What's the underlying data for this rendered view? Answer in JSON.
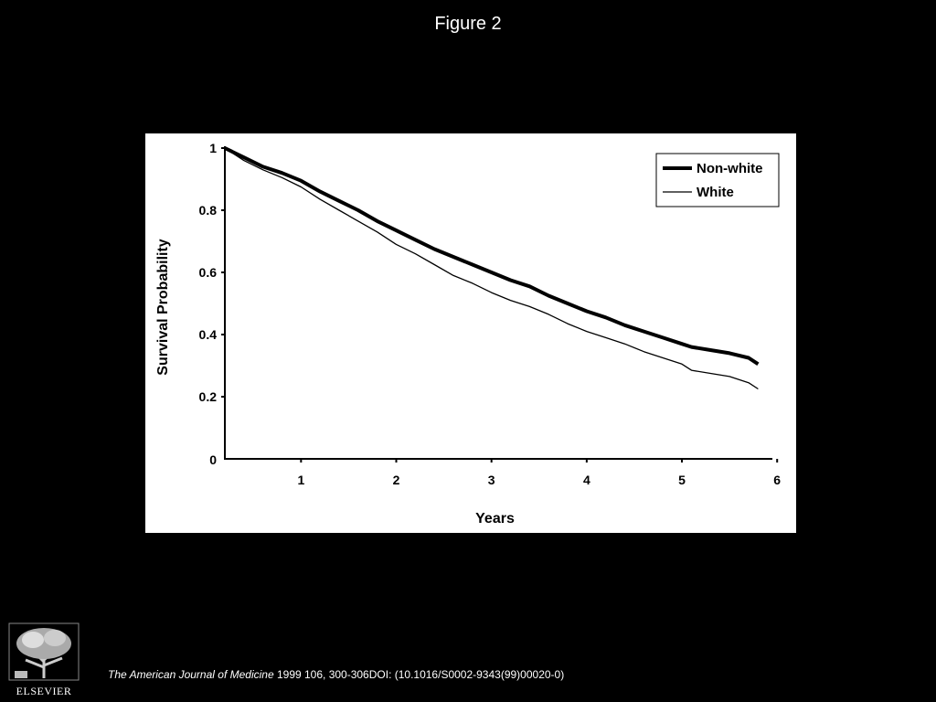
{
  "slide": {
    "title": "Figure 2"
  },
  "citation": {
    "journal": "The American Journal of Medicine",
    "details": " 1999 106, 300-306DOI: (10.1016/S0002-9343(99)00020-0)"
  },
  "publisher": {
    "name": "ELSEVIER",
    "logo_icon": "elsevier-tree-icon"
  },
  "chart_data": {
    "type": "line",
    "title": "",
    "xlabel": "Years",
    "ylabel": "Survival Probability",
    "xlim": [
      0.2,
      5.95
    ],
    "ylim": [
      0,
      1
    ],
    "x_ticks": [
      1,
      2,
      3,
      4,
      5,
      6
    ],
    "y_ticks": [
      0.2,
      0.4,
      0.6,
      0.8,
      1
    ],
    "y_tick_labels": [
      "0.2",
      "0.4",
      "0.6",
      "0.8",
      "1"
    ],
    "zero_label": "0",
    "grid": false,
    "legend_position": "top-right",
    "series": [
      {
        "name": "Non-white",
        "style": "thick",
        "x": [
          0.2,
          0.4,
          0.6,
          0.8,
          1.0,
          1.2,
          1.4,
          1.6,
          1.8,
          2.0,
          2.2,
          2.4,
          2.6,
          2.8,
          3.0,
          3.2,
          3.4,
          3.6,
          3.8,
          4.0,
          4.2,
          4.4,
          4.6,
          4.8,
          5.0,
          5.1,
          5.3,
          5.5,
          5.7,
          5.8
        ],
        "y": [
          1.0,
          0.97,
          0.94,
          0.92,
          0.895,
          0.86,
          0.83,
          0.8,
          0.765,
          0.735,
          0.705,
          0.675,
          0.65,
          0.625,
          0.6,
          0.575,
          0.555,
          0.525,
          0.5,
          0.475,
          0.455,
          0.43,
          0.41,
          0.39,
          0.37,
          0.36,
          0.35,
          0.34,
          0.325,
          0.305
        ]
      },
      {
        "name": "White",
        "style": "thin",
        "x": [
          0.2,
          0.4,
          0.6,
          0.8,
          1.0,
          1.2,
          1.4,
          1.6,
          1.8,
          2.0,
          2.2,
          2.4,
          2.6,
          2.8,
          3.0,
          3.2,
          3.4,
          3.6,
          3.8,
          4.0,
          4.2,
          4.4,
          4.6,
          4.8,
          5.0,
          5.1,
          5.3,
          5.5,
          5.7,
          5.8
        ],
        "y": [
          1.0,
          0.96,
          0.93,
          0.905,
          0.875,
          0.835,
          0.8,
          0.765,
          0.73,
          0.69,
          0.66,
          0.625,
          0.59,
          0.565,
          0.535,
          0.51,
          0.49,
          0.465,
          0.435,
          0.41,
          0.39,
          0.37,
          0.345,
          0.325,
          0.305,
          0.285,
          0.275,
          0.265,
          0.245,
          0.225
        ]
      }
    ]
  }
}
